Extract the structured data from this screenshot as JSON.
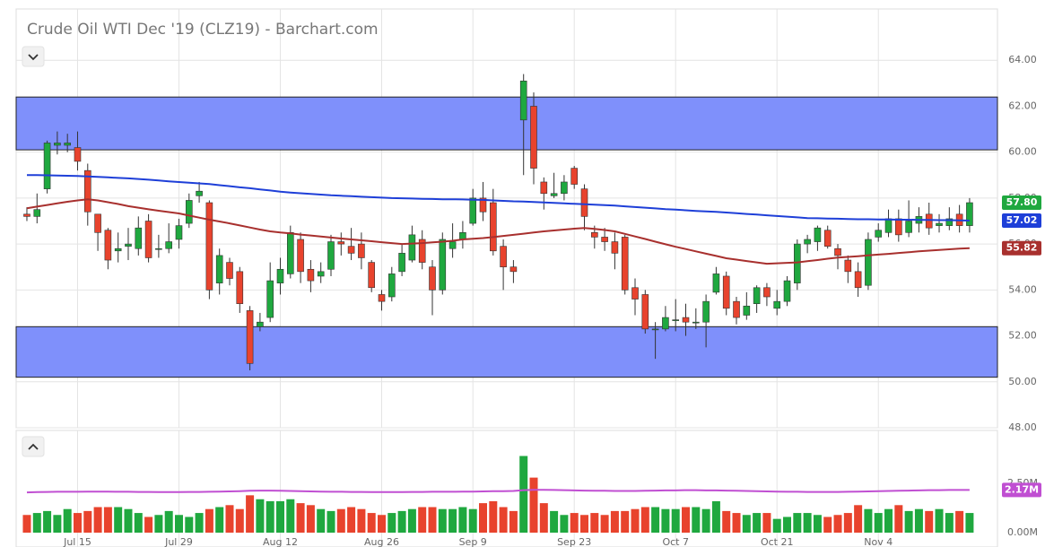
{
  "chart_data": [
    {
      "type": "candlestick",
      "title": "Crude Oil WTI Dec '19 (CLZ19) - Barchart.com",
      "xlim": [
        -1.06,
        95.75
      ],
      "ylim": [
        48,
        66
      ],
      "yticks": [
        {
          "value": 48,
          "label": "48.00"
        },
        {
          "value": 50,
          "label": "50.00"
        },
        {
          "value": 52,
          "label": "52.00"
        },
        {
          "value": 54,
          "label": "54.00"
        },
        {
          "value": 56,
          "label": "56.00"
        },
        {
          "value": 58,
          "label": "58.00"
        },
        {
          "value": 60,
          "label": "60.00"
        },
        {
          "value": 62,
          "label": "62.00"
        },
        {
          "value": 64,
          "label": "64.00"
        }
      ],
      "grid": true,
      "up_color": "#1fa83f",
      "down_color": "#e8432d",
      "zones": [
        {
          "from": 60.1,
          "to": 62.4
        },
        {
          "from": 50.2,
          "to": 52.4
        }
      ],
      "zone_color": "#7f90fb",
      "series": [
        {
          "type": "candlestick",
          "last_label": "57.80",
          "open": [
            57.3,
            57.2,
            58.4,
            60.3,
            60.3,
            60.2,
            59.2,
            57.3,
            56.6,
            55.7,
            55.9,
            55.8,
            57.0,
            55.8,
            55.8,
            56.2,
            56.9,
            58.1,
            57.8,
            54.3,
            55.2,
            54.8,
            53.1,
            52.4,
            52.8,
            54.3,
            54.7,
            56.2,
            54.9,
            54.6,
            54.9,
            56.1,
            55.9,
            56.0,
            55.2,
            53.8,
            53.7,
            54.8,
            55.3,
            56.2,
            55.0,
            54.0,
            55.8,
            56.2,
            56.9,
            58.0,
            57.8,
            55.9,
            55.0,
            61.4,
            62.0,
            58.7,
            58.1,
            58.2,
            59.3,
            58.4,
            56.5,
            56.3,
            56.1,
            56.3,
            54.1,
            53.8,
            52.3,
            52.3,
            52.7,
            52.8,
            52.6,
            52.6,
            53.9,
            54.6,
            53.5,
            52.9,
            53.4,
            54.1,
            53.2,
            53.5,
            54.3,
            56.0,
            56.1,
            56.6,
            55.8,
            55.3,
            54.8,
            54.2,
            56.3,
            56.5,
            57.1,
            56.5,
            56.9,
            57.3,
            56.8,
            56.8,
            57.3,
            56.8
          ],
          "high": [
            57.6,
            58.2,
            60.5,
            60.9,
            60.8,
            60.9,
            59.5,
            57.3,
            56.7,
            56.5,
            56.7,
            57.2,
            57.3,
            56.4,
            56.9,
            57.1,
            58.2,
            58.7,
            57.9,
            55.8,
            55.4,
            55.0,
            53.3,
            53.0,
            55.2,
            55.4,
            56.8,
            56.5,
            55.3,
            55.2,
            56.4,
            56.5,
            56.7,
            56.5,
            55.3,
            54.0,
            55.0,
            56.0,
            56.8,
            56.6,
            55.3,
            56.5,
            56.9,
            57.0,
            58.4,
            58.7,
            58.4,
            56.2,
            55.3,
            63.4,
            62.6,
            58.9,
            59.1,
            59.0,
            59.4,
            58.6,
            56.8,
            56.7,
            56.5,
            56.4,
            54.5,
            54.0,
            52.6,
            53.3,
            53.6,
            53.4,
            53.2,
            53.8,
            55.0,
            54.8,
            53.7,
            53.9,
            54.2,
            54.3,
            54.0,
            54.6,
            56.2,
            56.4,
            56.8,
            56.8,
            56.0,
            55.5,
            55.2,
            56.5,
            56.9,
            57.5,
            57.5,
            57.9,
            57.6,
            57.8,
            57.3,
            57.6,
            57.7,
            58.0
          ],
          "low": [
            57.0,
            56.9,
            58.2,
            59.9,
            60.0,
            59.2,
            56.8,
            55.7,
            54.9,
            55.2,
            55.3,
            55.5,
            55.2,
            55.4,
            55.6,
            55.8,
            56.7,
            57.8,
            53.6,
            53.8,
            54.2,
            53.0,
            50.5,
            52.2,
            52.6,
            53.8,
            54.5,
            54.3,
            53.9,
            54.3,
            54.6,
            55.5,
            55.3,
            54.9,
            53.9,
            53.1,
            53.5,
            54.6,
            55.2,
            54.9,
            52.9,
            53.8,
            55.4,
            55.8,
            56.8,
            57.0,
            55.5,
            54.0,
            54.3,
            59.0,
            58.6,
            57.5,
            58.0,
            57.9,
            58.4,
            56.6,
            55.8,
            55.7,
            54.9,
            53.8,
            52.9,
            52.1,
            51.0,
            52.2,
            52.2,
            52.0,
            52.3,
            51.5,
            53.8,
            52.9,
            52.5,
            52.7,
            53.0,
            53.3,
            52.9,
            53.3,
            54.0,
            55.6,
            55.7,
            55.8,
            54.9,
            54.3,
            53.7,
            54.0,
            56.1,
            56.3,
            56.1,
            56.3,
            56.5,
            56.4,
            56.5,
            56.6,
            56.5,
            56.5
          ],
          "close": [
            57.2,
            57.5,
            60.4,
            60.4,
            60.4,
            59.6,
            57.4,
            56.5,
            55.3,
            55.8,
            56.0,
            56.7,
            55.4,
            55.8,
            56.1,
            56.8,
            57.9,
            58.3,
            54.0,
            55.5,
            54.5,
            53.4,
            50.8,
            52.6,
            54.4,
            54.9,
            56.5,
            54.8,
            54.4,
            54.8,
            56.1,
            56.0,
            55.6,
            55.4,
            54.1,
            53.5,
            54.7,
            55.6,
            56.4,
            55.2,
            54.0,
            56.2,
            56.1,
            56.5,
            58.0,
            57.4,
            55.7,
            55.0,
            54.8,
            63.1,
            59.3,
            58.2,
            58.2,
            58.7,
            58.6,
            57.2,
            56.3,
            56.1,
            55.6,
            54.0,
            53.6,
            52.3,
            52.3,
            52.8,
            52.7,
            52.6,
            52.6,
            53.5,
            54.7,
            53.2,
            52.8,
            53.3,
            54.1,
            53.7,
            53.5,
            54.4,
            56.0,
            56.2,
            56.7,
            55.9,
            55.5,
            54.8,
            54.1,
            56.2,
            56.6,
            57.1,
            56.4,
            57.0,
            57.2,
            56.7,
            56.9,
            57.1,
            56.8,
            57.8
          ]
        },
        {
          "type": "line",
          "color": "#1e3fd8",
          "last_label": "57.02",
          "values": [
            59.0,
            59.0,
            58.99,
            58.98,
            58.97,
            58.96,
            58.94,
            58.92,
            58.9,
            58.88,
            58.86,
            58.83,
            58.8,
            58.77,
            58.73,
            58.7,
            58.67,
            58.64,
            58.61,
            58.56,
            58.52,
            58.47,
            58.43,
            58.38,
            58.33,
            58.28,
            58.24,
            58.21,
            58.18,
            58.15,
            58.12,
            58.1,
            58.08,
            58.06,
            58.04,
            58.02,
            58.0,
            57.99,
            57.98,
            57.97,
            57.96,
            57.95,
            57.95,
            57.94,
            57.93,
            57.92,
            57.9,
            57.88,
            57.86,
            57.85,
            57.83,
            57.81,
            57.79,
            57.77,
            57.75,
            57.73,
            57.71,
            57.69,
            57.67,
            57.64,
            57.61,
            57.58,
            57.55,
            57.52,
            57.5,
            57.47,
            57.44,
            57.42,
            57.4,
            57.37,
            57.34,
            57.31,
            57.28,
            57.25,
            57.22,
            57.19,
            57.16,
            57.13,
            57.12,
            57.11,
            57.1,
            57.09,
            57.08,
            57.08,
            57.07,
            57.07,
            57.06,
            57.06,
            57.05,
            57.05,
            57.04,
            57.04,
            57.03,
            57.02
          ]
        },
        {
          "type": "line",
          "color": "#a8302e",
          "last_label": "55.82",
          "values": [
            57.56,
            57.63,
            57.7,
            57.77,
            57.84,
            57.9,
            57.95,
            57.9,
            57.82,
            57.74,
            57.65,
            57.58,
            57.51,
            57.45,
            57.39,
            57.33,
            57.24,
            57.15,
            57.06,
            56.98,
            56.9,
            56.81,
            56.72,
            56.63,
            56.55,
            56.5,
            56.46,
            56.41,
            56.37,
            56.33,
            56.28,
            56.24,
            56.2,
            56.16,
            56.12,
            56.08,
            56.04,
            56.0,
            56.02,
            56.04,
            56.07,
            56.1,
            56.14,
            56.2,
            56.23,
            56.26,
            56.3,
            56.35,
            56.4,
            56.45,
            56.5,
            56.55,
            56.59,
            56.63,
            56.67,
            56.7,
            56.66,
            56.61,
            56.55,
            56.44,
            56.33,
            56.22,
            56.1,
            55.99,
            55.88,
            55.78,
            55.68,
            55.58,
            55.48,
            55.38,
            55.32,
            55.26,
            55.2,
            55.14,
            55.16,
            55.18,
            55.2,
            55.25,
            55.3,
            55.36,
            55.41,
            55.44,
            55.47,
            55.51,
            55.54,
            55.57,
            55.61,
            55.64,
            55.68,
            55.71,
            55.74,
            55.77,
            55.8,
            55.82
          ]
        }
      ]
    },
    {
      "type": "bar",
      "xlim": [
        -1.06,
        95.75
      ],
      "ylim": [
        0,
        5.2
      ],
      "yticks": [
        {
          "value": 0,
          "label": "0.00M"
        },
        {
          "value": 2.5,
          "label": "2.50M"
        }
      ],
      "xticks": [
        {
          "value": 5,
          "label": "Jul 15"
        },
        {
          "value": 15,
          "label": "Jul 29"
        },
        {
          "value": 25,
          "label": "Aug 12"
        },
        {
          "value": 35,
          "label": "Aug 26"
        },
        {
          "value": 44,
          "label": "Sep 9"
        },
        {
          "value": 54,
          "label": "Sep 23"
        },
        {
          "value": 64,
          "label": "Oct 7"
        },
        {
          "value": 74,
          "label": "Oct 21"
        },
        {
          "value": 84,
          "label": "Nov 4"
        }
      ],
      "series": [
        {
          "type": "bar",
          "values": [
            0.9,
            1.0,
            1.1,
            0.9,
            1.2,
            1.0,
            1.1,
            1.3,
            1.3,
            1.3,
            1.2,
            1.0,
            0.8,
            0.9,
            1.1,
            0.9,
            0.8,
            1.0,
            1.2,
            1.3,
            1.4,
            1.2,
            1.9,
            1.7,
            1.6,
            1.6,
            1.7,
            1.5,
            1.4,
            1.2,
            1.1,
            1.2,
            1.3,
            1.2,
            1.0,
            0.9,
            1.0,
            1.1,
            1.2,
            1.3,
            1.3,
            1.2,
            1.2,
            1.3,
            1.2,
            1.5,
            1.6,
            1.3,
            1.1,
            3.9,
            2.8,
            1.5,
            1.1,
            0.9,
            1.0,
            0.9,
            1.0,
            0.9,
            1.1,
            1.1,
            1.2,
            1.3,
            1.3,
            1.2,
            1.2,
            1.3,
            1.3,
            1.2,
            1.6,
            1.1,
            1.0,
            0.9,
            1.0,
            1.0,
            0.7,
            0.8,
            1.0,
            1.0,
            0.9,
            0.8,
            0.9,
            1.0,
            1.4,
            1.2,
            1.0,
            1.2,
            1.4,
            1.1,
            1.2,
            1.1,
            1.2,
            1.0,
            1.1,
            1.0
          ]
        },
        {
          "type": "line",
          "color": "#c04fd2",
          "last_label": "2.17M",
          "values": [
            2.05,
            2.06,
            2.07,
            2.08,
            2.08,
            2.08,
            2.09,
            2.09,
            2.09,
            2.08,
            2.08,
            2.07,
            2.07,
            2.06,
            2.06,
            2.06,
            2.07,
            2.07,
            2.08,
            2.09,
            2.1,
            2.11,
            2.13,
            2.14,
            2.14,
            2.13,
            2.12,
            2.11,
            2.1,
            2.09,
            2.08,
            2.08,
            2.07,
            2.07,
            2.06,
            2.06,
            2.06,
            2.06,
            2.07,
            2.07,
            2.08,
            2.08,
            2.08,
            2.09,
            2.09,
            2.1,
            2.11,
            2.11,
            2.12,
            2.16,
            2.18,
            2.18,
            2.17,
            2.16,
            2.15,
            2.14,
            2.13,
            2.13,
            2.12,
            2.12,
            2.12,
            2.13,
            2.14,
            2.15,
            2.15,
            2.16,
            2.16,
            2.15,
            2.15,
            2.14,
            2.13,
            2.12,
            2.11,
            2.1,
            2.09,
            2.08,
            2.08,
            2.07,
            2.07,
            2.07,
            2.07,
            2.08,
            2.09,
            2.1,
            2.11,
            2.12,
            2.13,
            2.14,
            2.15,
            2.16,
            2.16,
            2.17,
            2.17,
            2.17
          ]
        }
      ]
    }
  ]
}
